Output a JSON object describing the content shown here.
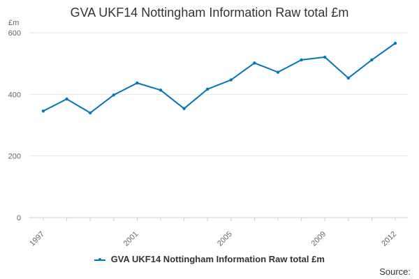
{
  "chart_data": {
    "type": "line",
    "title": "GVA UKF14 Nottingham Information Raw total £m",
    "ylabel": "£m",
    "xlabel": "",
    "x": [
      1997,
      1998,
      1999,
      2000,
      2001,
      2002,
      2003,
      2004,
      2005,
      2006,
      2007,
      2008,
      2009,
      2010,
      2011,
      2012
    ],
    "x_tick_labels": [
      "1997",
      "2001",
      "2005",
      "2009",
      "2012"
    ],
    "y_tick_labels": [
      "0",
      "200",
      "400",
      "600"
    ],
    "ylim": [
      0,
      600
    ],
    "grid": true,
    "legend_position": "bottom",
    "series": [
      {
        "name": "GVA UKF14 Nottingham Information Raw total £m",
        "color": "#0077bb",
        "values": [
          346,
          385,
          340,
          398,
          437,
          414,
          354,
          417,
          447,
          502,
          472,
          512,
          521,
          453,
          512,
          566
        ]
      }
    ]
  },
  "source_label": "Source:"
}
